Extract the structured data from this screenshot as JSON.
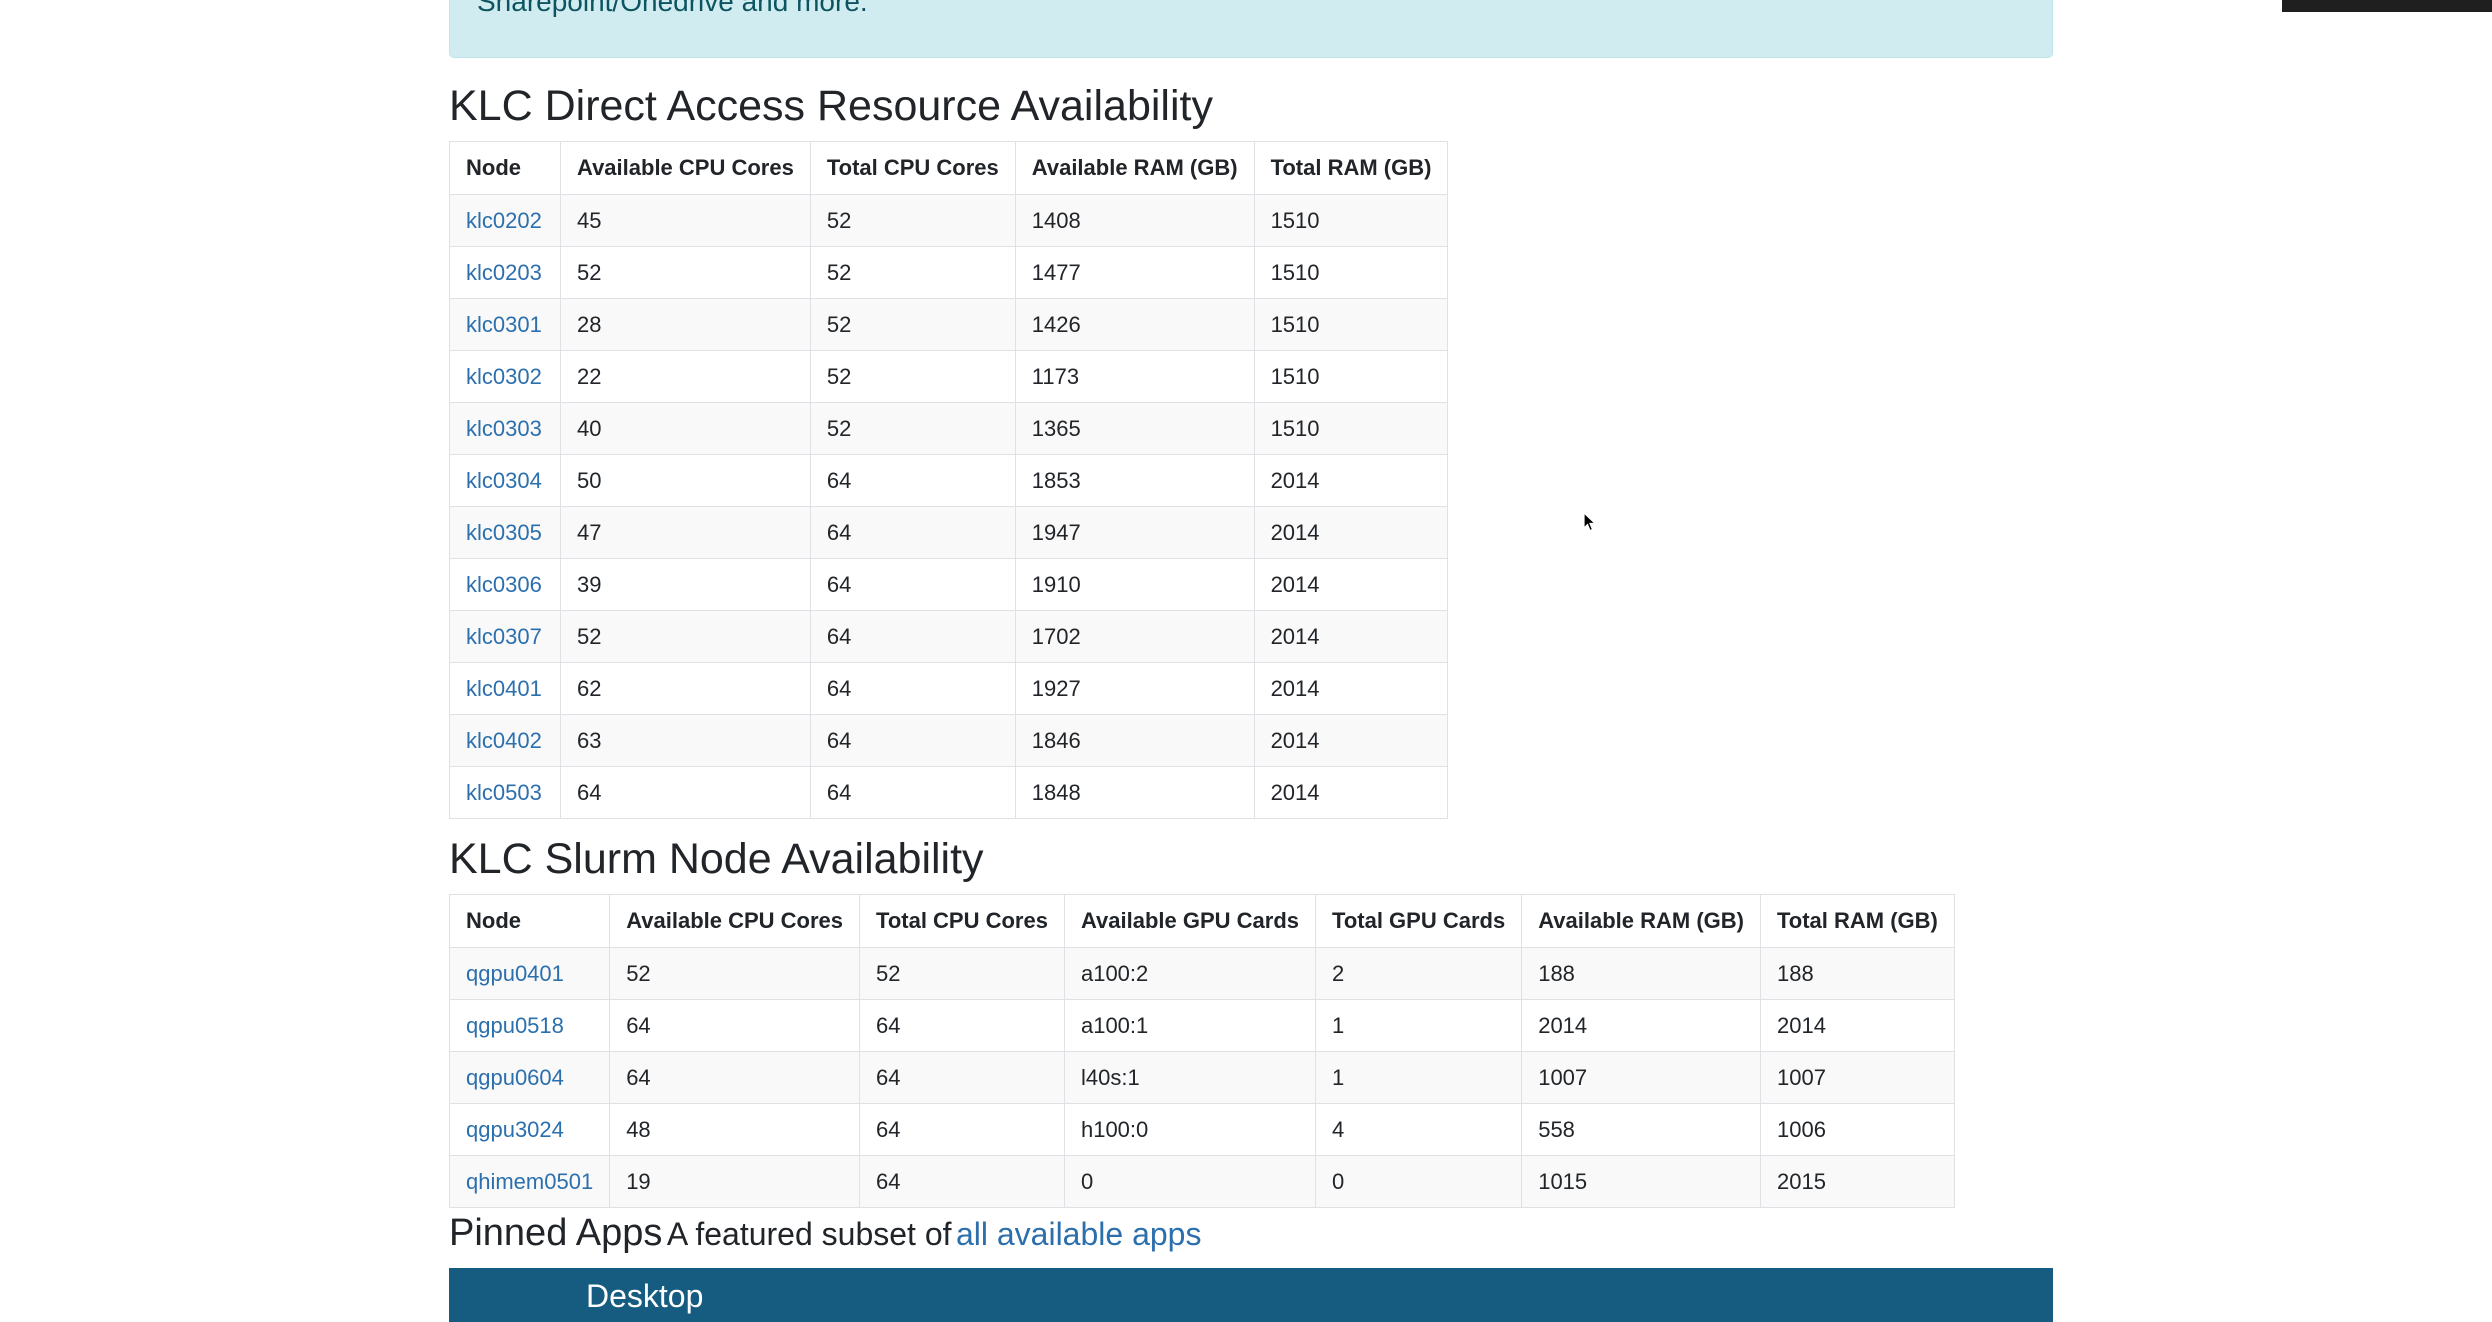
{
  "alert": {
    "text": "Sharepoint/Onedrive and more."
  },
  "direct_access": {
    "title": "KLC Direct Access Resource Availability",
    "headers": [
      "Node",
      "Available CPU Cores",
      "Total CPU Cores",
      "Available RAM (GB)",
      "Total RAM (GB)"
    ],
    "rows": [
      [
        "klc0202",
        "45",
        "52",
        "1408",
        "1510"
      ],
      [
        "klc0203",
        "52",
        "52",
        "1477",
        "1510"
      ],
      [
        "klc0301",
        "28",
        "52",
        "1426",
        "1510"
      ],
      [
        "klc0302",
        "22",
        "52",
        "1173",
        "1510"
      ],
      [
        "klc0303",
        "40",
        "52",
        "1365",
        "1510"
      ],
      [
        "klc0304",
        "50",
        "64",
        "1853",
        "2014"
      ],
      [
        "klc0305",
        "47",
        "64",
        "1947",
        "2014"
      ],
      [
        "klc0306",
        "39",
        "64",
        "1910",
        "2014"
      ],
      [
        "klc0307",
        "52",
        "64",
        "1702",
        "2014"
      ],
      [
        "klc0401",
        "62",
        "64",
        "1927",
        "2014"
      ],
      [
        "klc0402",
        "63",
        "64",
        "1846",
        "2014"
      ],
      [
        "klc0503",
        "64",
        "64",
        "1848",
        "2014"
      ]
    ]
  },
  "slurm": {
    "title": "KLC Slurm Node Availability",
    "headers": [
      "Node",
      "Available CPU Cores",
      "Total CPU Cores",
      "Available GPU Cards",
      "Total GPU Cards",
      "Available RAM (GB)",
      "Total RAM (GB)"
    ],
    "rows": [
      [
        "qgpu0401",
        "52",
        "52",
        "a100:2",
        "2",
        "188",
        "188"
      ],
      [
        "qgpu0518",
        "64",
        "64",
        "a100:1",
        "1",
        "2014",
        "2014"
      ],
      [
        "qgpu0604",
        "64",
        "64",
        "l40s:1",
        "1",
        "1007",
        "1007"
      ],
      [
        "qgpu3024",
        "48",
        "64",
        "h100:0",
        "4",
        "558",
        "1006"
      ],
      [
        "qhimem0501",
        "19",
        "64",
        "0",
        "0",
        "1015",
        "2015"
      ]
    ]
  },
  "pinned": {
    "title": "Pinned Apps",
    "subtitle": "A featured subset of",
    "link": "all available apps"
  },
  "desktop": {
    "label": "Desktop"
  },
  "colors": {
    "link": "#2c6fad",
    "alert_bg": "#d1ecf1",
    "desktop_bar": "#165b80"
  },
  "icons": {
    "cursor": "mouse-pointer-icon"
  }
}
